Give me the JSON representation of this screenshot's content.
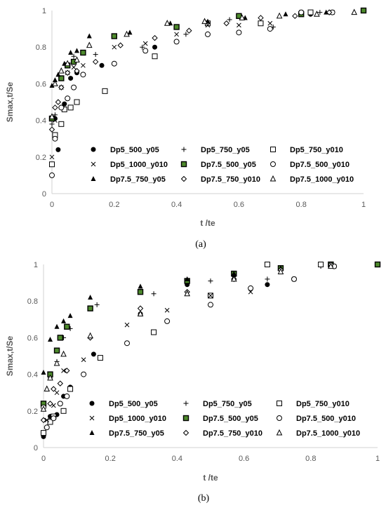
{
  "chart_data": [
    {
      "type": "scatter",
      "caption": "(a)",
      "xlabel": "t /te",
      "ylabel": "Smax,t/Se",
      "xlim": [
        0,
        1
      ],
      "ylim": [
        0,
        1
      ],
      "xticks": [
        "0",
        "0.2",
        "0.4",
        "0.6",
        "0.8",
        "1"
      ],
      "yticks": [
        "0",
        "0.2",
        "0.4",
        "0.6",
        "0.8",
        "1"
      ],
      "grid": false,
      "legend_position": "bottom-inside",
      "series": [
        {
          "name": "Dp5_500_y05",
          "marker": "filled-circle",
          "x": [
            0.01,
            0.02,
            0.04,
            0.06,
            0.08,
            0.16,
            0.33,
            0.5,
            0.67,
            0.83,
            1.0
          ],
          "y": [
            0.41,
            0.24,
            0.49,
            0.63,
            0.66,
            0.7,
            0.8,
            0.93,
            0.93,
            0.98,
            1.0
          ]
        },
        {
          "name": "Dp5_750_y05",
          "marker": "plus",
          "x": [
            0.0,
            0.01,
            0.03,
            0.05,
            0.07,
            0.14,
            0.29,
            0.43,
            0.57,
            0.71,
            0.86,
            1.0
          ],
          "y": [
            0.38,
            0.43,
            0.63,
            0.7,
            0.75,
            0.76,
            0.8,
            0.87,
            0.95,
            0.91,
            0.99,
            1.0
          ]
        },
        {
          "name": "Dp5_750_y010",
          "marker": "open-square",
          "x": [
            0.0,
            0.01,
            0.03,
            0.04,
            0.06,
            0.08,
            0.17,
            0.33,
            0.5,
            0.67,
            0.83,
            1.0
          ],
          "y": [
            0.16,
            0.32,
            0.38,
            0.46,
            0.47,
            0.5,
            0.56,
            0.75,
            0.93,
            0.93,
            0.99,
            1.0
          ]
        },
        {
          "name": "Dp5_1000_y010",
          "marker": "x-cross",
          "x": [
            0.0,
            0.01,
            0.03,
            0.05,
            0.07,
            0.1,
            0.2,
            0.3,
            0.4,
            0.5,
            0.6,
            0.7,
            0.8,
            0.9,
            1.0
          ],
          "y": [
            0.2,
            0.4,
            0.58,
            0.66,
            0.69,
            0.7,
            0.8,
            0.82,
            0.87,
            0.92,
            0.92,
            0.93,
            0.99,
            0.99,
            1.0
          ]
        },
        {
          "name": "Dp7.5_500_y05",
          "marker": "filled-square-green",
          "x": [
            0.0,
            0.03,
            0.05,
            0.07,
            0.1,
            0.2,
            0.4,
            0.6,
            0.8,
            1.0
          ],
          "y": [
            0.41,
            0.63,
            0.7,
            0.72,
            0.77,
            0.86,
            0.91,
            0.97,
            0.98,
            1.0
          ]
        },
        {
          "name": "Dp7.5_500_y010",
          "marker": "open-circle",
          "x": [
            0.0,
            0.01,
            0.03,
            0.05,
            0.07,
            0.1,
            0.2,
            0.3,
            0.4,
            0.5,
            0.6,
            0.7,
            0.8,
            0.9
          ],
          "y": [
            0.1,
            0.3,
            0.47,
            0.52,
            0.58,
            0.65,
            0.71,
            0.78,
            0.83,
            0.87,
            0.88,
            0.9,
            0.99,
            0.99
          ]
        },
        {
          "name": "Dp7.5_750_y05",
          "marker": "filled-triangle",
          "x": [
            0.0,
            0.01,
            0.02,
            0.03,
            0.04,
            0.06,
            0.08,
            0.12,
            0.25,
            0.38,
            0.5,
            0.62,
            0.75,
            0.88
          ],
          "y": [
            0.59,
            0.62,
            0.65,
            0.67,
            0.71,
            0.77,
            0.78,
            0.86,
            0.88,
            0.93,
            0.94,
            0.96,
            0.98,
            0.99
          ]
        },
        {
          "name": "Dp7.5_750_y010",
          "marker": "open-diamond",
          "x": [
            0.0,
            0.01,
            0.02,
            0.03,
            0.05,
            0.08,
            0.14,
            0.22,
            0.33,
            0.44,
            0.56,
            0.67,
            0.78,
            0.89
          ],
          "y": [
            0.35,
            0.47,
            0.5,
            0.58,
            0.66,
            0.67,
            0.72,
            0.81,
            0.85,
            0.89,
            0.93,
            0.96,
            0.97,
            0.99
          ]
        },
        {
          "name": "Dp7.5_1000_y010",
          "marker": "open-triangle",
          "x": [
            0.0,
            0.01,
            0.03,
            0.05,
            0.08,
            0.12,
            0.24,
            0.37,
            0.49,
            0.61,
            0.73,
            0.85,
            0.97
          ],
          "y": [
            0.42,
            0.6,
            0.67,
            0.71,
            0.73,
            0.81,
            0.87,
            0.93,
            0.94,
            0.96,
            0.97,
            0.98,
            0.99
          ]
        }
      ]
    },
    {
      "type": "scatter",
      "caption": "(b)",
      "xlabel": "t /te",
      "ylabel": "Smax,t/Se",
      "xlim": [
        0,
        1
      ],
      "ylim": [
        0,
        1
      ],
      "xticks": [
        "0",
        "0.2",
        "0.4",
        "0.6",
        "0.8",
        "1"
      ],
      "yticks": [
        "0",
        "0.2",
        "0.4",
        "0.6",
        "0.8",
        "1"
      ],
      "grid": false,
      "legend_position": "bottom-inside",
      "series": [
        {
          "name": "Dp5_500_y05",
          "marker": "filled-circle",
          "x": [
            0.0,
            0.02,
            0.04,
            0.06,
            0.08,
            0.15,
            0.29,
            0.43,
            0.57,
            0.67,
            0.86,
            1.0
          ],
          "y": [
            0.06,
            0.17,
            0.18,
            0.28,
            0.33,
            0.51,
            0.73,
            0.89,
            0.94,
            0.89,
            0.99,
            1.0
          ]
        },
        {
          "name": "Dp5_750_y05",
          "marker": "plus",
          "x": [
            0.0,
            0.02,
            0.04,
            0.06,
            0.08,
            0.16,
            0.33,
            0.5,
            0.67,
            0.83
          ],
          "y": [
            0.24,
            0.38,
            0.47,
            0.6,
            0.65,
            0.78,
            0.84,
            0.91,
            0.92,
            0.99
          ]
        },
        {
          "name": "Dp5_750_y010",
          "marker": "open-square",
          "x": [
            0.0,
            0.02,
            0.03,
            0.06,
            0.08,
            0.17,
            0.33,
            0.5,
            0.67,
            0.83,
            1.0
          ],
          "y": [
            0.08,
            0.14,
            0.17,
            0.2,
            0.32,
            0.49,
            0.63,
            0.83,
            1.0,
            1.0,
            1.0
          ]
        },
        {
          "name": "Dp5_1000_y010",
          "marker": "x-cross",
          "x": [
            0.01,
            0.03,
            0.04,
            0.06,
            0.12,
            0.25,
            0.37,
            0.5,
            0.62,
            0.75,
            0.87,
            1.0
          ],
          "y": [
            0.15,
            0.23,
            0.3,
            0.42,
            0.48,
            0.67,
            0.75,
            0.83,
            0.85,
            0.92,
            0.99,
            1.0
          ]
        },
        {
          "name": "Dp7.5_500_y05",
          "marker": "filled-square-green",
          "x": [
            0.0,
            0.02,
            0.04,
            0.05,
            0.07,
            0.14,
            0.29,
            0.43,
            0.57,
            0.71,
            0.86,
            1.0
          ],
          "y": [
            0.24,
            0.4,
            0.53,
            0.6,
            0.66,
            0.76,
            0.85,
            0.91,
            0.95,
            0.98,
            1.0,
            1.0
          ]
        },
        {
          "name": "Dp7.5_500_y010",
          "marker": "open-circle",
          "x": [
            0.0,
            0.01,
            0.03,
            0.05,
            0.07,
            0.12,
            0.25,
            0.37,
            0.5,
            0.62,
            0.75,
            0.87
          ],
          "y": [
            0.22,
            0.11,
            0.16,
            0.24,
            0.28,
            0.4,
            0.57,
            0.69,
            0.78,
            0.87,
            0.92,
            0.99
          ]
        },
        {
          "name": "Dp7.5_750_y05",
          "marker": "filled-triangle",
          "x": [
            0.0,
            0.02,
            0.04,
            0.06,
            0.08,
            0.14,
            0.29,
            0.43,
            0.57,
            0.71,
            0.86
          ],
          "y": [
            0.41,
            0.59,
            0.66,
            0.69,
            0.72,
            0.82,
            0.88,
            0.92,
            0.95,
            0.98,
            1.0
          ]
        },
        {
          "name": "Dp7.5_750_y010",
          "marker": "open-diamond",
          "x": [
            0.0,
            0.02,
            0.03,
            0.05,
            0.07,
            0.14,
            0.29,
            0.43,
            0.57,
            0.71,
            0.86
          ],
          "y": [
            0.15,
            0.24,
            0.32,
            0.35,
            0.42,
            0.6,
            0.76,
            0.85,
            0.92,
            0.97,
            1.0
          ]
        },
        {
          "name": "Dp7.5_1000_y010",
          "marker": "open-triangle",
          "x": [
            0.0,
            0.01,
            0.02,
            0.04,
            0.06,
            0.14,
            0.29,
            0.43,
            0.57,
            0.71,
            0.86
          ],
          "y": [
            0.21,
            0.32,
            0.38,
            0.46,
            0.51,
            0.61,
            0.73,
            0.84,
            0.92,
            0.96,
            0.99
          ]
        }
      ]
    }
  ]
}
